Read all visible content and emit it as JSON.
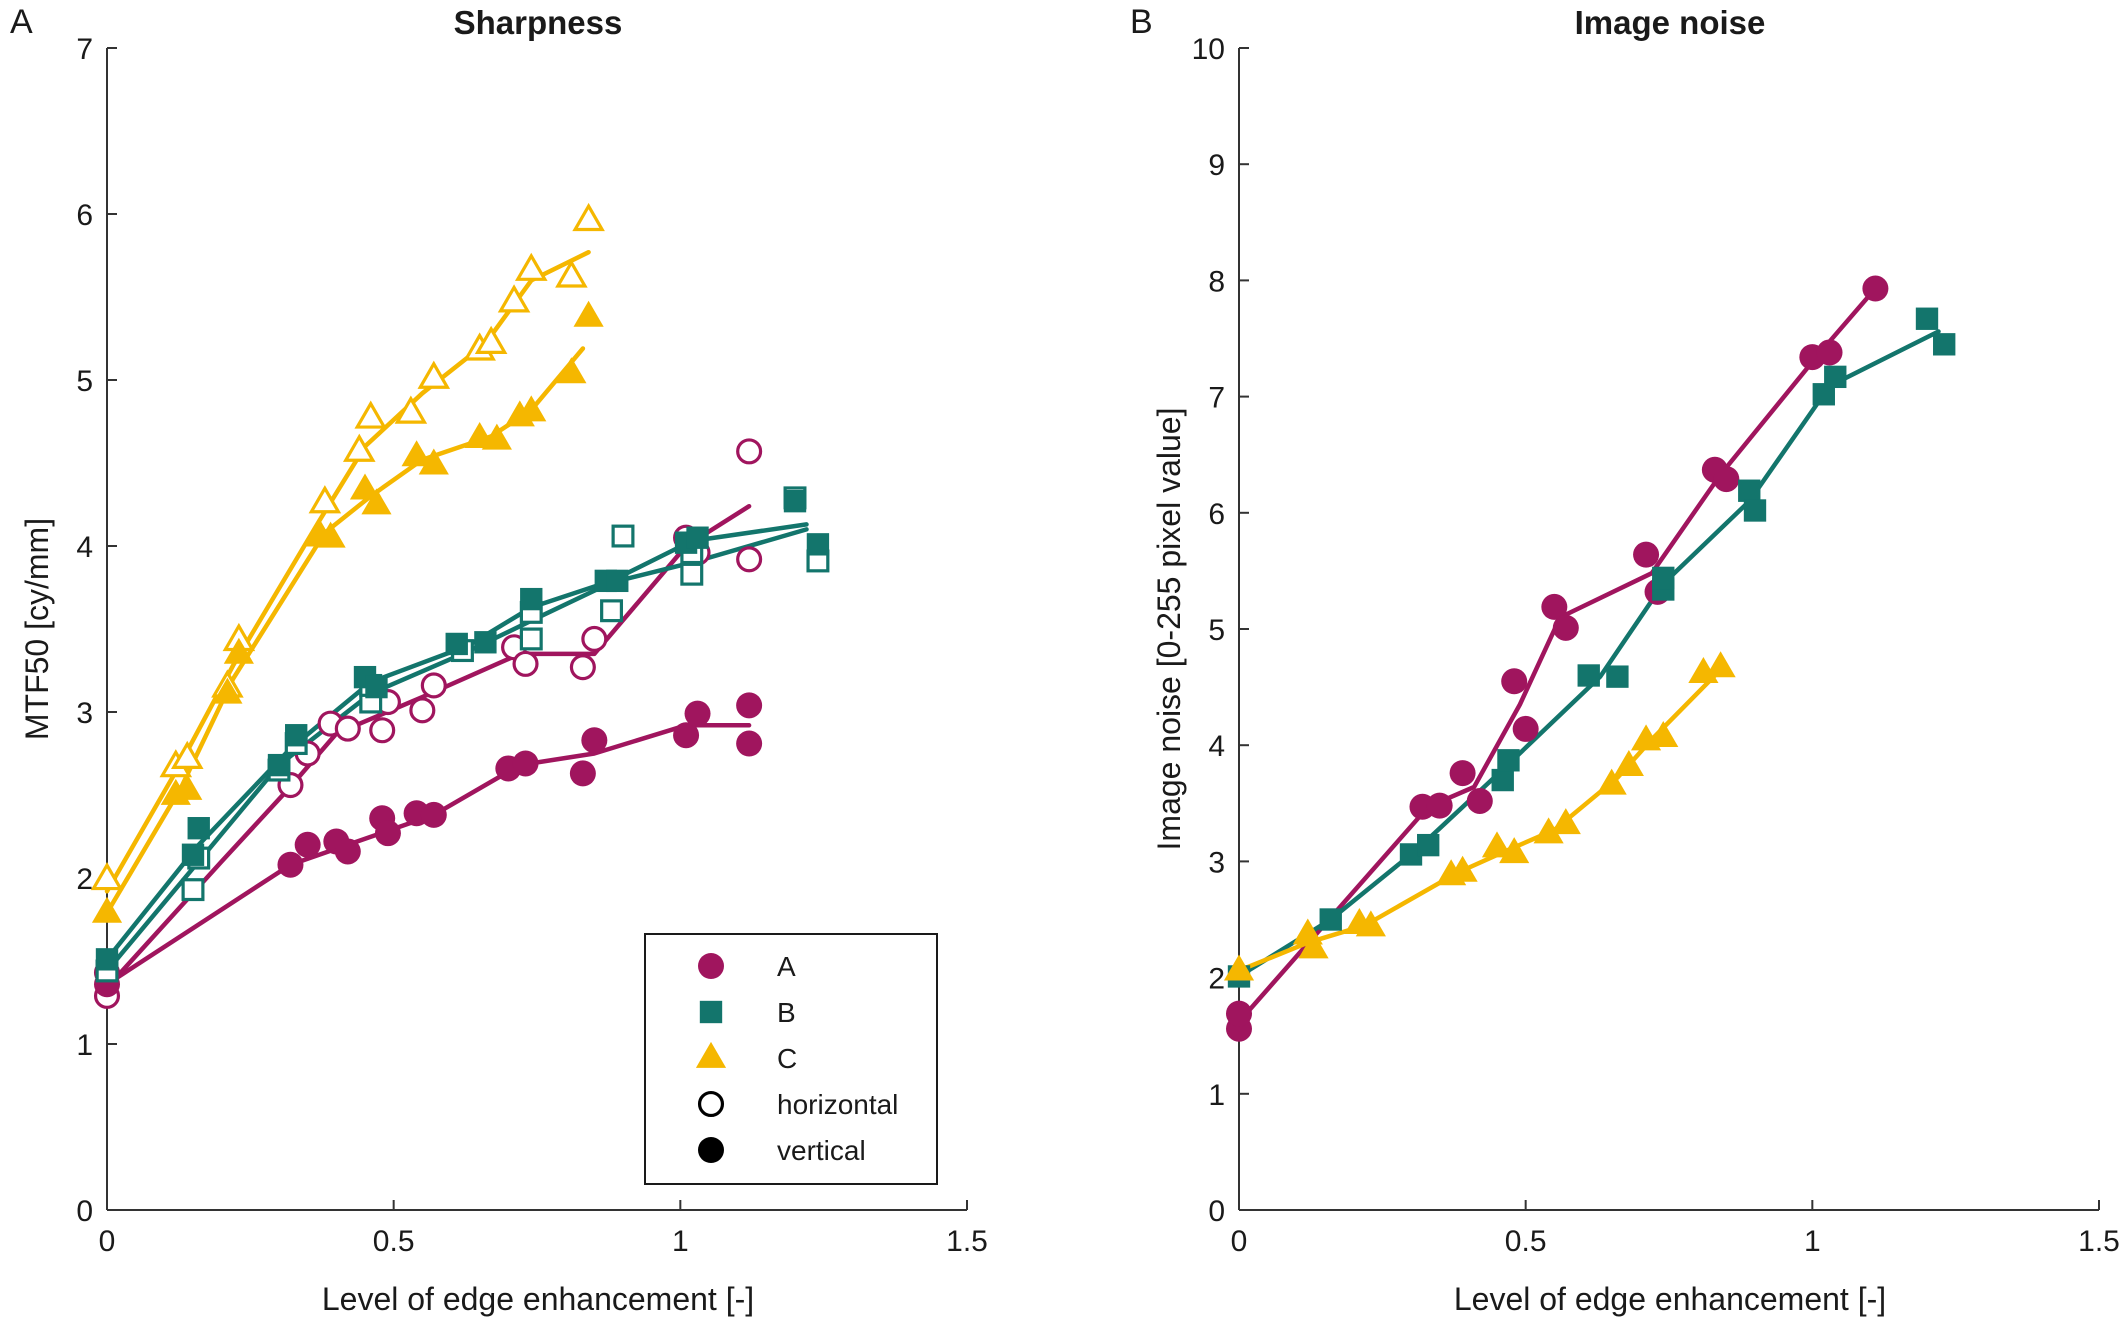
{
  "chart_data": [
    {
      "type": "scatter",
      "panel_label": "A",
      "title": "Sharpness",
      "xlabel": "Level of edge enhancement [-]",
      "ylabel": "MTF50 [cy/mm]",
      "xlim": [
        0,
        1.5
      ],
      "ylim": [
        0,
        7
      ],
      "xticks": [
        "0",
        "0.5",
        "1",
        "1.5"
      ],
      "yticks": [
        "0",
        "1",
        "2",
        "3",
        "4",
        "5",
        "6",
        "7"
      ],
      "grid": false,
      "legend": {
        "placement": "bottom-right",
        "entries": [
          {
            "label": "A",
            "marker": "circle",
            "color": "#a0155e",
            "filled": true
          },
          {
            "label": "B",
            "marker": "square",
            "color": "#13756c",
            "filled": true
          },
          {
            "label": "C",
            "marker": "triangle",
            "color": "#f5b700",
            "filled": true
          },
          {
            "label": "horizontal",
            "marker": "circle",
            "color": "#000000",
            "filled": false
          },
          {
            "label": "vertical",
            "marker": "circle",
            "color": "#000000",
            "filled": true
          }
        ]
      },
      "series": [
        {
          "name": "A",
          "orientation": "horizontal",
          "marker": "circle",
          "color": "#a0155e",
          "filled": false,
          "points": [
            [
              0,
              1.29
            ],
            [
              0,
              1.43
            ],
            [
              0.32,
              2.56
            ],
            [
              0.35,
              2.75
            ],
            [
              0.39,
              2.93
            ],
            [
              0.42,
              2.9
            ],
            [
              0.48,
              2.89
            ],
            [
              0.49,
              3.06
            ],
            [
              0.55,
              3.01
            ],
            [
              0.57,
              3.16
            ],
            [
              0.71,
              3.39
            ],
            [
              0.73,
              3.29
            ],
            [
              0.83,
              3.27
            ],
            [
              0.85,
              3.44
            ],
            [
              1.01,
              4.05
            ],
            [
              1.03,
              3.96
            ],
            [
              1.12,
              3.92
            ],
            [
              1.12,
              4.57
            ]
          ],
          "fit": [
            [
              0,
              1.34
            ],
            [
              0.2,
              2.1
            ],
            [
              0.32,
              2.55
            ],
            [
              0.4,
              2.87
            ],
            [
              0.55,
              3.09
            ],
            [
              0.72,
              3.35
            ],
            [
              0.85,
              3.35
            ],
            [
              1.01,
              4
            ],
            [
              1.12,
              4.24
            ]
          ]
        },
        {
          "name": "A",
          "orientation": "vertical",
          "marker": "circle",
          "color": "#a0155e",
          "filled": true,
          "points": [
            [
              0,
              1.36
            ],
            [
              0.32,
              2.08
            ],
            [
              0.35,
              2.2
            ],
            [
              0.4,
              2.22
            ],
            [
              0.42,
              2.16
            ],
            [
              0.48,
              2.36
            ],
            [
              0.49,
              2.27
            ],
            [
              0.54,
              2.39
            ],
            [
              0.57,
              2.38
            ],
            [
              0.7,
              2.66
            ],
            [
              0.73,
              2.69
            ],
            [
              0.83,
              2.63
            ],
            [
              0.85,
              2.83
            ],
            [
              1.01,
              2.86
            ],
            [
              1.03,
              2.99
            ],
            [
              1.12,
              2.81
            ],
            [
              1.12,
              3.04
            ]
          ],
          "fit": [
            [
              0,
              1.36
            ],
            [
              0.32,
              2.08
            ],
            [
              0.42,
              2.2
            ],
            [
              0.57,
              2.38
            ],
            [
              0.72,
              2.68
            ],
            [
              0.85,
              2.75
            ],
            [
              1.01,
              2.92
            ],
            [
              1.12,
              2.92
            ]
          ]
        },
        {
          "name": "B",
          "orientation": "horizontal",
          "marker": "square",
          "color": "#13756c",
          "filled": false,
          "points": [
            [
              0,
              1.44
            ],
            [
              0.15,
              1.93
            ],
            [
              0.16,
              2.12
            ],
            [
              0.3,
              2.65
            ],
            [
              0.33,
              2.81
            ],
            [
              0.46,
              3.06
            ],
            [
              0.46,
              3.16
            ],
            [
              0.62,
              3.37
            ],
            [
              0.74,
              3.44
            ],
            [
              0.74,
              3.6
            ],
            [
              0.88,
              3.61
            ],
            [
              0.9,
              4.06
            ],
            [
              1.02,
              3.83
            ],
            [
              1.02,
              3.96
            ],
            [
              1.2,
              4.29
            ],
            [
              1.24,
              3.91
            ]
          ],
          "fit": [
            [
              0,
              1.44
            ],
            [
              0.16,
              2.1
            ],
            [
              0.3,
              2.68
            ],
            [
              0.46,
              3.11
            ],
            [
              0.62,
              3.35
            ],
            [
              0.74,
              3.55
            ],
            [
              0.88,
              3.78
            ],
            [
              1.02,
              3.9
            ],
            [
              1.22,
              4.1
            ]
          ]
        },
        {
          "name": "B",
          "orientation": "vertical",
          "marker": "square",
          "color": "#13756c",
          "filled": true,
          "points": [
            [
              0,
              1.51
            ],
            [
              0.15,
              2.14
            ],
            [
              0.16,
              2.3
            ],
            [
              0.3,
              2.68
            ],
            [
              0.33,
              2.86
            ],
            [
              0.45,
              3.21
            ],
            [
              0.47,
              3.15
            ],
            [
              0.61,
              3.41
            ],
            [
              0.66,
              3.42
            ],
            [
              0.74,
              3.68
            ],
            [
              0.87,
              3.79
            ],
            [
              0.89,
              3.79
            ],
            [
              1.01,
              4.02
            ],
            [
              1.03,
              4.05
            ],
            [
              1.2,
              4.27
            ],
            [
              1.24,
              4.01
            ]
          ],
          "fit": [
            [
              0,
              1.51
            ],
            [
              0.16,
              2.2
            ],
            [
              0.32,
              2.78
            ],
            [
              0.46,
              3.18
            ],
            [
              0.63,
              3.4
            ],
            [
              0.74,
              3.63
            ],
            [
              0.88,
              3.79
            ],
            [
              1.02,
              4.03
            ],
            [
              1.22,
              4.13
            ]
          ]
        },
        {
          "name": "C",
          "orientation": "horizontal",
          "marker": "triangle",
          "color": "#f5b700",
          "filled": false,
          "points": [
            [
              0,
              1.99
            ],
            [
              0.12,
              2.67
            ],
            [
              0.14,
              2.72
            ],
            [
              0.21,
              3.15
            ],
            [
              0.23,
              3.43
            ],
            [
              0.37,
              4.06
            ],
            [
              0.38,
              4.26
            ],
            [
              0.44,
              4.57
            ],
            [
              0.46,
              4.77
            ],
            [
              0.53,
              4.8
            ],
            [
              0.57,
              5.01
            ],
            [
              0.65,
              5.18
            ],
            [
              0.67,
              5.22
            ],
            [
              0.71,
              5.47
            ],
            [
              0.74,
              5.66
            ],
            [
              0.81,
              5.62
            ],
            [
              0.84,
              5.96
            ]
          ],
          "fit": [
            [
              0,
              1.92
            ],
            [
              0.13,
              2.7
            ],
            [
              0.22,
              3.28
            ],
            [
              0.37,
              4.15
            ],
            [
              0.45,
              4.6
            ],
            [
              0.55,
              4.92
            ],
            [
              0.66,
              5.22
            ],
            [
              0.74,
              5.6
            ],
            [
              0.84,
              5.77
            ]
          ]
        },
        {
          "name": "C",
          "orientation": "vertical",
          "marker": "triangle",
          "color": "#f5b700",
          "filled": true,
          "points": [
            [
              0,
              1.79
            ],
            [
              0.12,
              2.5
            ],
            [
              0.14,
              2.53
            ],
            [
              0.21,
              3.11
            ],
            [
              0.23,
              3.35
            ],
            [
              0.37,
              4.07
            ],
            [
              0.39,
              4.05
            ],
            [
              0.45,
              4.34
            ],
            [
              0.47,
              4.25
            ],
            [
              0.54,
              4.54
            ],
            [
              0.57,
              4.49
            ],
            [
              0.65,
              4.65
            ],
            [
              0.68,
              4.64
            ],
            [
              0.72,
              4.78
            ],
            [
              0.74,
              4.81
            ],
            [
              0.81,
              5.04
            ],
            [
              0.84,
              5.38
            ]
          ],
          "fit": [
            [
              0,
              1.79
            ],
            [
              0.13,
              2.55
            ],
            [
              0.22,
              3.2
            ],
            [
              0.38,
              4.08
            ],
            [
              0.46,
              4.3
            ],
            [
              0.55,
              4.52
            ],
            [
              0.67,
              4.66
            ],
            [
              0.74,
              4.82
            ],
            [
              0.83,
              5.19
            ]
          ]
        }
      ]
    },
    {
      "type": "scatter",
      "panel_label": "B",
      "title": "Image noise",
      "xlabel": "Level of edge enhancement [-]",
      "ylabel": "Image noise [0-255 pixel value]",
      "xlim": [
        0,
        1.5
      ],
      "ylim": [
        0,
        10
      ],
      "xticks": [
        "0",
        "0.5",
        "1",
        "1.5"
      ],
      "yticks": [
        "0",
        "1",
        "2",
        "3",
        "4",
        "5",
        "6",
        "7",
        "8",
        "9",
        "10"
      ],
      "grid": false,
      "series": [
        {
          "name": "A",
          "marker": "circle",
          "color": "#a0155e",
          "filled": true,
          "points": [
            [
              0,
              1.56
            ],
            [
              0,
              1.69
            ],
            [
              0.32,
              3.47
            ],
            [
              0.35,
              3.48
            ],
            [
              0.39,
              3.76
            ],
            [
              0.42,
              3.52
            ],
            [
              0.48,
              4.55
            ],
            [
              0.5,
              4.14
            ],
            [
              0.55,
              5.19
            ],
            [
              0.57,
              5.01
            ],
            [
              0.71,
              5.64
            ],
            [
              0.73,
              5.32
            ],
            [
              0.83,
              6.37
            ],
            [
              0.85,
              6.29
            ],
            [
              1.0,
              7.34
            ],
            [
              1.03,
              7.38
            ],
            [
              1.11,
              7.93
            ]
          ],
          "fit": [
            [
              0,
              1.62
            ],
            [
              0.33,
              3.47
            ],
            [
              0.41,
              3.64
            ],
            [
              0.49,
              4.35
            ],
            [
              0.56,
              5.1
            ],
            [
              0.72,
              5.48
            ],
            [
              0.84,
              6.33
            ],
            [
              1.01,
              7.36
            ],
            [
              1.11,
              7.93
            ]
          ]
        },
        {
          "name": "B",
          "marker": "square",
          "color": "#13756c",
          "filled": true,
          "points": [
            [
              0,
              2.01
            ],
            [
              0.16,
              2.5
            ],
            [
              0.3,
              3.06
            ],
            [
              0.33,
              3.14
            ],
            [
              0.46,
              3.7
            ],
            [
              0.47,
              3.87
            ],
            [
              0.61,
              4.6
            ],
            [
              0.66,
              4.59
            ],
            [
              0.74,
              5.34
            ],
            [
              0.74,
              5.44
            ],
            [
              0.89,
              6.19
            ],
            [
              0.9,
              6.02
            ],
            [
              1.02,
              7.02
            ],
            [
              1.04,
              7.17
            ],
            [
              1.2,
              7.67
            ],
            [
              1.23,
              7.45
            ]
          ],
          "fit": [
            [
              0,
              2.01
            ],
            [
              0.16,
              2.5
            ],
            [
              0.31,
              3.1
            ],
            [
              0.46,
              3.79
            ],
            [
              0.63,
              4.59
            ],
            [
              0.74,
              5.39
            ],
            [
              0.89,
              6.1
            ],
            [
              1.03,
              7.09
            ],
            [
              1.22,
              7.56
            ]
          ]
        },
        {
          "name": "C",
          "marker": "triangle",
          "color": "#f5b700",
          "filled": true,
          "points": [
            [
              0,
              2.06
            ],
            [
              0.12,
              2.37
            ],
            [
              0.13,
              2.25
            ],
            [
              0.21,
              2.46
            ],
            [
              0.23,
              2.44
            ],
            [
              0.37,
              2.88
            ],
            [
              0.39,
              2.91
            ],
            [
              0.45,
              3.12
            ],
            [
              0.48,
              3.07
            ],
            [
              0.54,
              3.24
            ],
            [
              0.57,
              3.32
            ],
            [
              0.65,
              3.66
            ],
            [
              0.68,
              3.82
            ],
            [
              0.71,
              4.04
            ],
            [
              0.74,
              4.07
            ],
            [
              0.81,
              4.62
            ],
            [
              0.84,
              4.67
            ]
          ],
          "fit": [
            [
              0,
              2.06
            ],
            [
              0.12,
              2.3
            ],
            [
              0.22,
              2.45
            ],
            [
              0.38,
              2.9
            ],
            [
              0.47,
              3.1
            ],
            [
              0.55,
              3.27
            ],
            [
              0.66,
              3.72
            ],
            [
              0.72,
              4.05
            ],
            [
              0.84,
              4.65
            ]
          ]
        }
      ]
    }
  ]
}
